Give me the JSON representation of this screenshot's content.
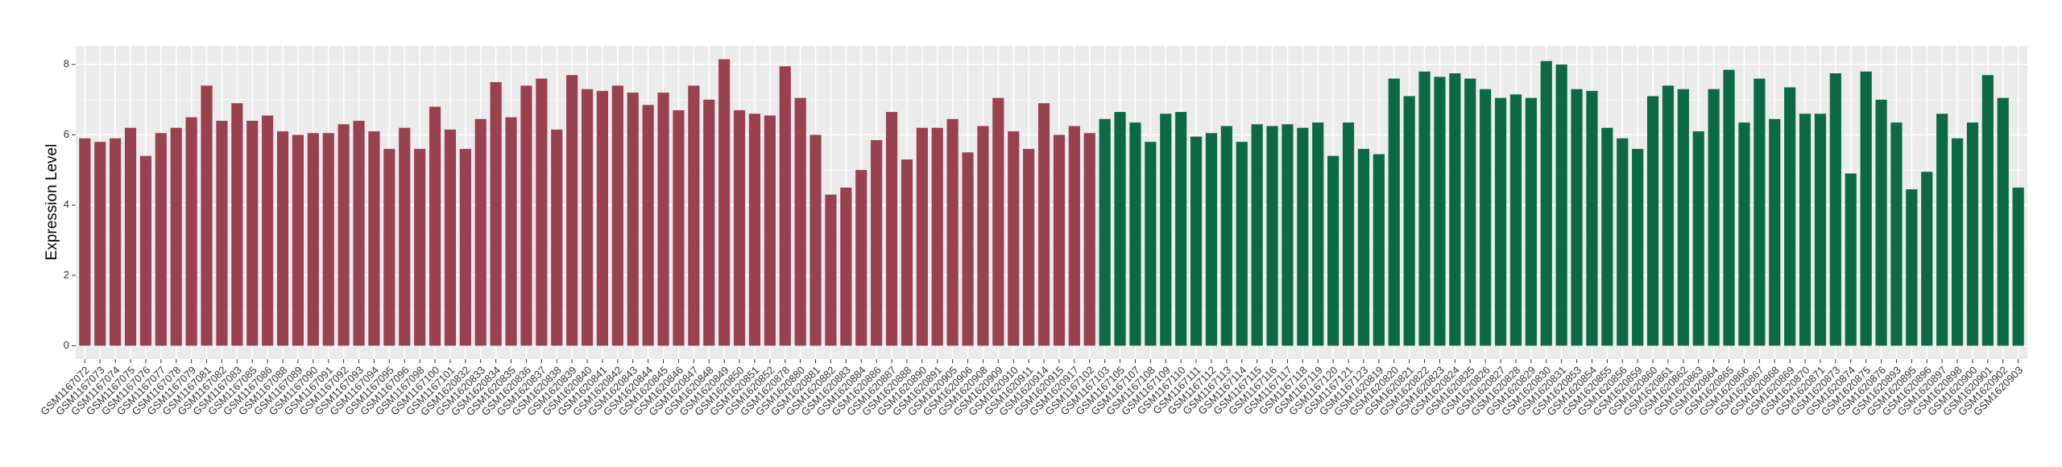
{
  "chart_data": {
    "type": "bar",
    "y_label": "Expression Level",
    "categories": [
      "GSM1167072",
      "GSM1167073",
      "GSM1167074",
      "GSM1167075",
      "GSM1167076",
      "GSM1167077",
      "GSM1167078",
      "GSM1167079",
      "GSM1167081",
      "GSM1167082",
      "GSM1167083",
      "GSM1167085",
      "GSM1167086",
      "GSM1167088",
      "GSM1167089",
      "GSM1167090",
      "GSM1167091",
      "GSM1167092",
      "GSM1167093",
      "GSM1167094",
      "GSM1167095",
      "GSM1167096",
      "GSM1167098",
      "GSM1167100",
      "GSM1167101",
      "GSM1620832",
      "GSM1620833",
      "GSM1620834",
      "GSM1620835",
      "GSM1620836",
      "GSM1620837",
      "GSM1620838",
      "GSM1620839",
      "GSM1620840",
      "GSM1620841",
      "GSM1620842",
      "GSM1620843",
      "GSM1620844",
      "GSM1620845",
      "GSM1620846",
      "GSM1620847",
      "GSM1620848",
      "GSM1620849",
      "GSM1620850",
      "GSM1620851",
      "GSM1620852",
      "GSM1620878",
      "GSM1620880",
      "GSM1620881",
      "GSM1620882",
      "GSM1620883",
      "GSM1620884",
      "GSM1620886",
      "GSM1620887",
      "GSM1620888",
      "GSM1620890",
      "GSM1620891",
      "GSM1620905",
      "GSM1620906",
      "GSM1620908",
      "GSM1620909",
      "GSM1620910",
      "GSM1620911",
      "GSM1620914",
      "GSM1620915",
      "GSM1620917",
      "GSM1167102",
      "GSM1167103",
      "GSM1167105",
      "GSM1167107",
      "GSM1167108",
      "GSM1167109",
      "GSM1167110",
      "GSM1167111",
      "GSM1167112",
      "GSM1167113",
      "GSM1167114",
      "GSM1167115",
      "GSM1167116",
      "GSM1167117",
      "GSM1167118",
      "GSM1167119",
      "GSM1167120",
      "GSM1167121",
      "GSM1167123",
      "GSM1620819",
      "GSM1620820",
      "GSM1620821",
      "GSM1620822",
      "GSM1620823",
      "GSM1620824",
      "GSM1620825",
      "GSM1620826",
      "GSM1620827",
      "GSM1620828",
      "GSM1620829",
      "GSM1620830",
      "GSM1620831",
      "GSM1620853",
      "GSM1620854",
      "GSM1620855",
      "GSM1620856",
      "GSM1620859",
      "GSM1620860",
      "GSM1620861",
      "GSM1620862",
      "GSM1620863",
      "GSM1620864",
      "GSM1620865",
      "GSM1620866",
      "GSM1620867",
      "GSM1620868",
      "GSM1620869",
      "GSM1620870",
      "GSM1620871",
      "GSM1620873",
      "GSM1620874",
      "GSM1620875",
      "GSM1620876",
      "GSM1620893",
      "GSM1620895",
      "GSM1620896",
      "GSM1620897",
      "GSM1620898",
      "GSM1620900",
      "GSM1620901",
      "GSM1620902",
      "GSM1620903"
    ],
    "values": [
      5.9,
      5.8,
      5.9,
      6.2,
      5.4,
      6.05,
      6.2,
      6.5,
      7.4,
      6.4,
      6.9,
      6.4,
      6.55,
      6.1,
      6.0,
      6.05,
      6.05,
      6.3,
      6.4,
      6.1,
      5.6,
      6.2,
      5.6,
      6.8,
      6.15,
      5.6,
      6.45,
      7.5,
      6.5,
      7.4,
      7.6,
      6.15,
      7.7,
      7.3,
      7.25,
      7.4,
      7.2,
      6.85,
      7.2,
      6.7,
      7.4,
      7.0,
      8.15,
      6.7,
      6.6,
      6.55,
      7.95,
      7.05,
      6.0,
      4.3,
      4.5,
      5.0,
      5.85,
      6.65,
      5.3,
      6.2,
      6.2,
      6.45,
      5.5,
      6.25,
      7.05,
      6.1,
      5.6,
      6.9,
      6.0,
      6.25,
      6.05,
      6.45,
      6.65,
      6.35,
      5.8,
      6.6,
      6.65,
      5.95,
      6.05,
      6.25,
      5.8,
      6.3,
      6.25,
      6.3,
      6.2,
      6.35,
      5.4,
      6.35,
      5.6,
      5.45,
      7.6,
      7.1,
      7.8,
      7.65,
      7.75,
      7.6,
      7.3,
      7.05,
      7.15,
      7.05,
      8.1,
      8.0,
      7.3,
      7.25,
      6.2,
      5.9,
      5.6,
      7.1,
      7.4,
      7.3,
      6.1,
      7.3,
      7.85,
      6.35,
      7.6,
      6.45,
      7.35,
      6.6,
      6.6,
      7.75,
      4.9,
      7.8,
      7.0,
      6.35,
      4.45,
      4.95,
      6.6,
      5.9,
      6.35,
      7.7,
      7.05,
      4.5
    ],
    "colors": [
      "#9a4150",
      "#9a4150",
      "#9a4150",
      "#9a4150",
      "#9a4150",
      "#9a4150",
      "#9a4150",
      "#9a4150",
      "#9a4150",
      "#9a4150",
      "#9a4150",
      "#9a4150",
      "#9a4150",
      "#9a4150",
      "#9a4150",
      "#9a4150",
      "#9a4150",
      "#9a4150",
      "#9a4150",
      "#9a4150",
      "#9a4150",
      "#9a4150",
      "#9a4150",
      "#9a4150",
      "#9a4150",
      "#9a4150",
      "#9a4150",
      "#9a4150",
      "#9a4150",
      "#9a4150",
      "#9a4150",
      "#9a4150",
      "#9a4150",
      "#9a4150",
      "#9a4150",
      "#9a4150",
      "#9a4150",
      "#9a4150",
      "#9a4150",
      "#9a4150",
      "#9a4150",
      "#9a4150",
      "#9a4150",
      "#9a4150",
      "#9a4150",
      "#9a4150",
      "#9a4150",
      "#9a4150",
      "#9a4150",
      "#9a4150",
      "#9a4150",
      "#9a4150",
      "#9a4150",
      "#9a4150",
      "#9a4150",
      "#9a4150",
      "#9a4150",
      "#9a4150",
      "#9a4150",
      "#9a4150",
      "#9a4150",
      "#9a4150",
      "#9a4150",
      "#9a4150",
      "#9a4150",
      "#9a4150",
      "#9a4150",
      "#0b6a45",
      "#0b6a45",
      "#0b6a45",
      "#0b6a45",
      "#0b6a45",
      "#0b6a45",
      "#0b6a45",
      "#0b6a45",
      "#0b6a45",
      "#0b6a45",
      "#0b6a45",
      "#0b6a45",
      "#0b6a45",
      "#0b6a45",
      "#0b6a45",
      "#0b6a45",
      "#0b6a45",
      "#0b6a45",
      "#0b6a45",
      "#0b6a45",
      "#0b6a45",
      "#0b6a45",
      "#0b6a45",
      "#0b6a45",
      "#0b6a45",
      "#0b6a45",
      "#0b6a45",
      "#0b6a45",
      "#0b6a45",
      "#0b6a45",
      "#0b6a45",
      "#0b6a45",
      "#0b6a45",
      "#0b6a45",
      "#0b6a45",
      "#0b6a45",
      "#0b6a45",
      "#0b6a45",
      "#0b6a45",
      "#0b6a45",
      "#0b6a45",
      "#0b6a45",
      "#0b6a45",
      "#0b6a45",
      "#0b6a45",
      "#0b6a45",
      "#0b6a45",
      "#0b6a45",
      "#0b6a45",
      "#0b6a45",
      "#0b6a45",
      "#0b6a45",
      "#0b6a45",
      "#0b6a45",
      "#0b6a45",
      "#0b6a45",
      "#0b6a45",
      "#0b6a45",
      "#0b6a45",
      "#0b6a45",
      "#0b6a45",
      "#0b6a45"
    ],
    "ylim": [
      -0.38,
      8.53
    ],
    "yticks": [
      0,
      2,
      4,
      6,
      8
    ],
    "grid": true
  }
}
